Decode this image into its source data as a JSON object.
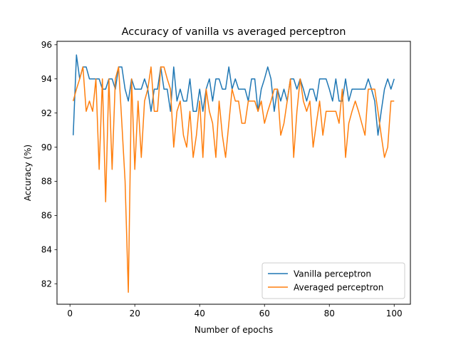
{
  "chart_data": {
    "type": "line",
    "title": "Accuracy of vanilla vs averaged perceptron",
    "xlabel": "Number of epochs",
    "ylabel": "Accuracy (%)",
    "xlim": [
      -4,
      105
    ],
    "ylim": [
      80.8,
      96.2
    ],
    "xticks": [
      0,
      20,
      40,
      60,
      80,
      100
    ],
    "yticks": [
      82,
      84,
      86,
      88,
      90,
      92,
      94,
      96
    ],
    "grid": false,
    "legend_position": "lower-right",
    "series": [
      {
        "name": "Vanilla perceptron",
        "color": "#1f77b4",
        "x": [
          1,
          2,
          3,
          4,
          5,
          6,
          7,
          8,
          9,
          10,
          11,
          12,
          13,
          14,
          15,
          16,
          17,
          18,
          19,
          20,
          21,
          22,
          23,
          24,
          25,
          26,
          27,
          28,
          29,
          30,
          31,
          32,
          33,
          34,
          35,
          36,
          37,
          38,
          39,
          40,
          41,
          42,
          43,
          44,
          45,
          46,
          47,
          48,
          49,
          50,
          51,
          52,
          53,
          54,
          55,
          56,
          57,
          58,
          59,
          60,
          61,
          62,
          63,
          64,
          65,
          66,
          67,
          68,
          69,
          70,
          71,
          72,
          73,
          74,
          75,
          76,
          77,
          78,
          79,
          80,
          81,
          82,
          83,
          84,
          85,
          86,
          87,
          88,
          89,
          90,
          91,
          92,
          93,
          94,
          95,
          96,
          97,
          98,
          99,
          100
        ],
        "values": [
          90.7,
          95.4,
          94.0,
          94.7,
          94.7,
          94.0,
          94.0,
          94.0,
          94.0,
          93.4,
          93.4,
          94.0,
          94.0,
          93.4,
          94.7,
          94.7,
          93.4,
          92.7,
          94.0,
          93.4,
          93.4,
          93.4,
          94.0,
          93.4,
          92.1,
          93.4,
          93.4,
          94.7,
          93.4,
          93.4,
          92.1,
          94.7,
          92.7,
          93.4,
          92.7,
          92.7,
          94.0,
          92.1,
          92.1,
          93.4,
          92.1,
          93.4,
          94.0,
          92.7,
          94.0,
          94.0,
          93.4,
          93.4,
          94.7,
          93.4,
          94.0,
          93.4,
          93.4,
          93.4,
          92.7,
          94.0,
          94.0,
          92.1,
          93.4,
          94.0,
          94.7,
          94.0,
          92.1,
          93.4,
          92.7,
          93.4,
          92.7,
          94.0,
          94.0,
          93.4,
          94.0,
          93.4,
          92.7,
          93.4,
          93.4,
          92.7,
          94.0,
          94.0,
          94.0,
          93.4,
          92.7,
          94.0,
          92.7,
          92.7,
          94.0,
          92.7,
          93.4,
          93.4,
          93.4,
          93.4,
          93.4,
          94.0,
          93.4,
          92.7,
          90.7,
          92.1,
          93.4,
          94.0,
          93.4,
          94.0
        ]
      },
      {
        "name": "Averaged perceptron",
        "color": "#ff7f0e",
        "x": [
          1,
          2,
          3,
          4,
          5,
          6,
          7,
          8,
          9,
          10,
          11,
          12,
          13,
          14,
          15,
          16,
          17,
          18,
          19,
          20,
          21,
          22,
          23,
          24,
          25,
          26,
          27,
          28,
          29,
          30,
          31,
          32,
          33,
          34,
          35,
          36,
          37,
          38,
          39,
          40,
          41,
          42,
          43,
          44,
          45,
          46,
          47,
          48,
          49,
          50,
          51,
          52,
          53,
          54,
          55,
          56,
          57,
          58,
          59,
          60,
          61,
          62,
          63,
          64,
          65,
          66,
          67,
          68,
          69,
          70,
          71,
          72,
          73,
          74,
          75,
          76,
          77,
          78,
          79,
          80,
          81,
          82,
          83,
          84,
          85,
          86,
          87,
          88,
          89,
          90,
          91,
          92,
          93,
          94,
          95,
          96,
          97,
          98,
          99,
          100
        ],
        "values": [
          92.7,
          93.4,
          94.0,
          94.7,
          92.1,
          92.7,
          92.1,
          94.0,
          88.7,
          94.0,
          86.8,
          94.0,
          88.7,
          94.0,
          94.7,
          91.4,
          88.0,
          81.5,
          94.0,
          88.7,
          92.7,
          89.4,
          92.7,
          93.4,
          94.7,
          92.1,
          92.1,
          94.7,
          94.7,
          94.0,
          93.4,
          90.0,
          92.1,
          92.7,
          90.7,
          90.0,
          92.1,
          89.4,
          90.7,
          92.7,
          89.4,
          93.4,
          92.1,
          91.4,
          89.4,
          92.7,
          90.7,
          89.4,
          91.4,
          93.4,
          92.7,
          92.7,
          91.4,
          91.4,
          92.7,
          92.7,
          92.7,
          92.1,
          92.7,
          91.4,
          92.1,
          92.7,
          93.4,
          93.4,
          90.7,
          91.4,
          92.7,
          94.0,
          89.4,
          92.1,
          94.0,
          92.7,
          92.1,
          92.7,
          90.0,
          91.4,
          92.7,
          90.7,
          92.1,
          92.1,
          92.1,
          92.1,
          91.4,
          93.4,
          89.4,
          91.4,
          92.1,
          92.7,
          92.1,
          91.4,
          90.7,
          93.4,
          93.4,
          93.4,
          92.1,
          90.7,
          89.4,
          90.0,
          92.7,
          92.7
        ]
      }
    ]
  }
}
